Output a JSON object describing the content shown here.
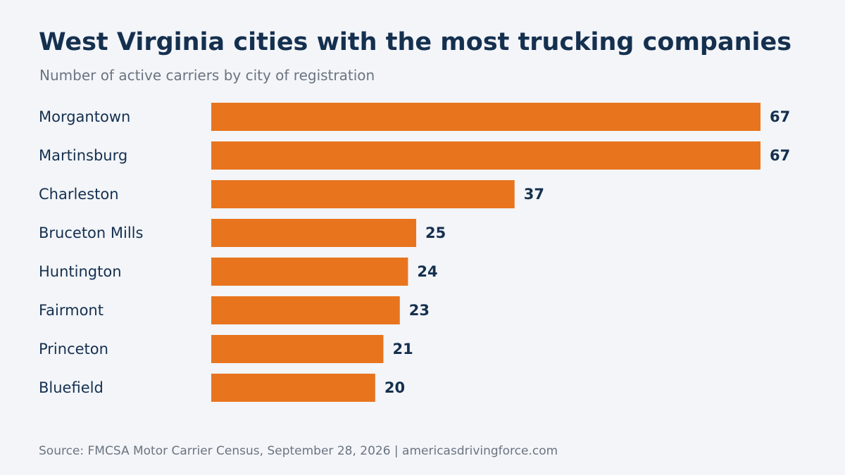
{
  "title": "West Virginia cities with the most trucking companies",
  "subtitle": "Number of active carriers by city of registration",
  "source": "Source: FMCSA Motor Carrier Census, September 28, 2026 | americasdrivingforce.com",
  "colors": {
    "bar": "#e8741e",
    "text": "#15304f",
    "muted": "#6b7480",
    "background": "#f3f5f9"
  },
  "chart_data": {
    "type": "bar",
    "orientation": "horizontal",
    "categories": [
      "Morgantown",
      "Martinsburg",
      "Charleston",
      "Bruceton Mills",
      "Huntington",
      "Fairmont",
      "Princeton",
      "Bluefield"
    ],
    "values": [
      67,
      67,
      37,
      25,
      24,
      23,
      21,
      20
    ],
    "title": "West Virginia cities with the most trucking companies",
    "subtitle": "Number of active carriers by city of registration",
    "xlabel": "",
    "ylabel": "",
    "xlim": [
      0,
      67
    ],
    "grid": false,
    "legend": "none",
    "data_labels": true
  }
}
